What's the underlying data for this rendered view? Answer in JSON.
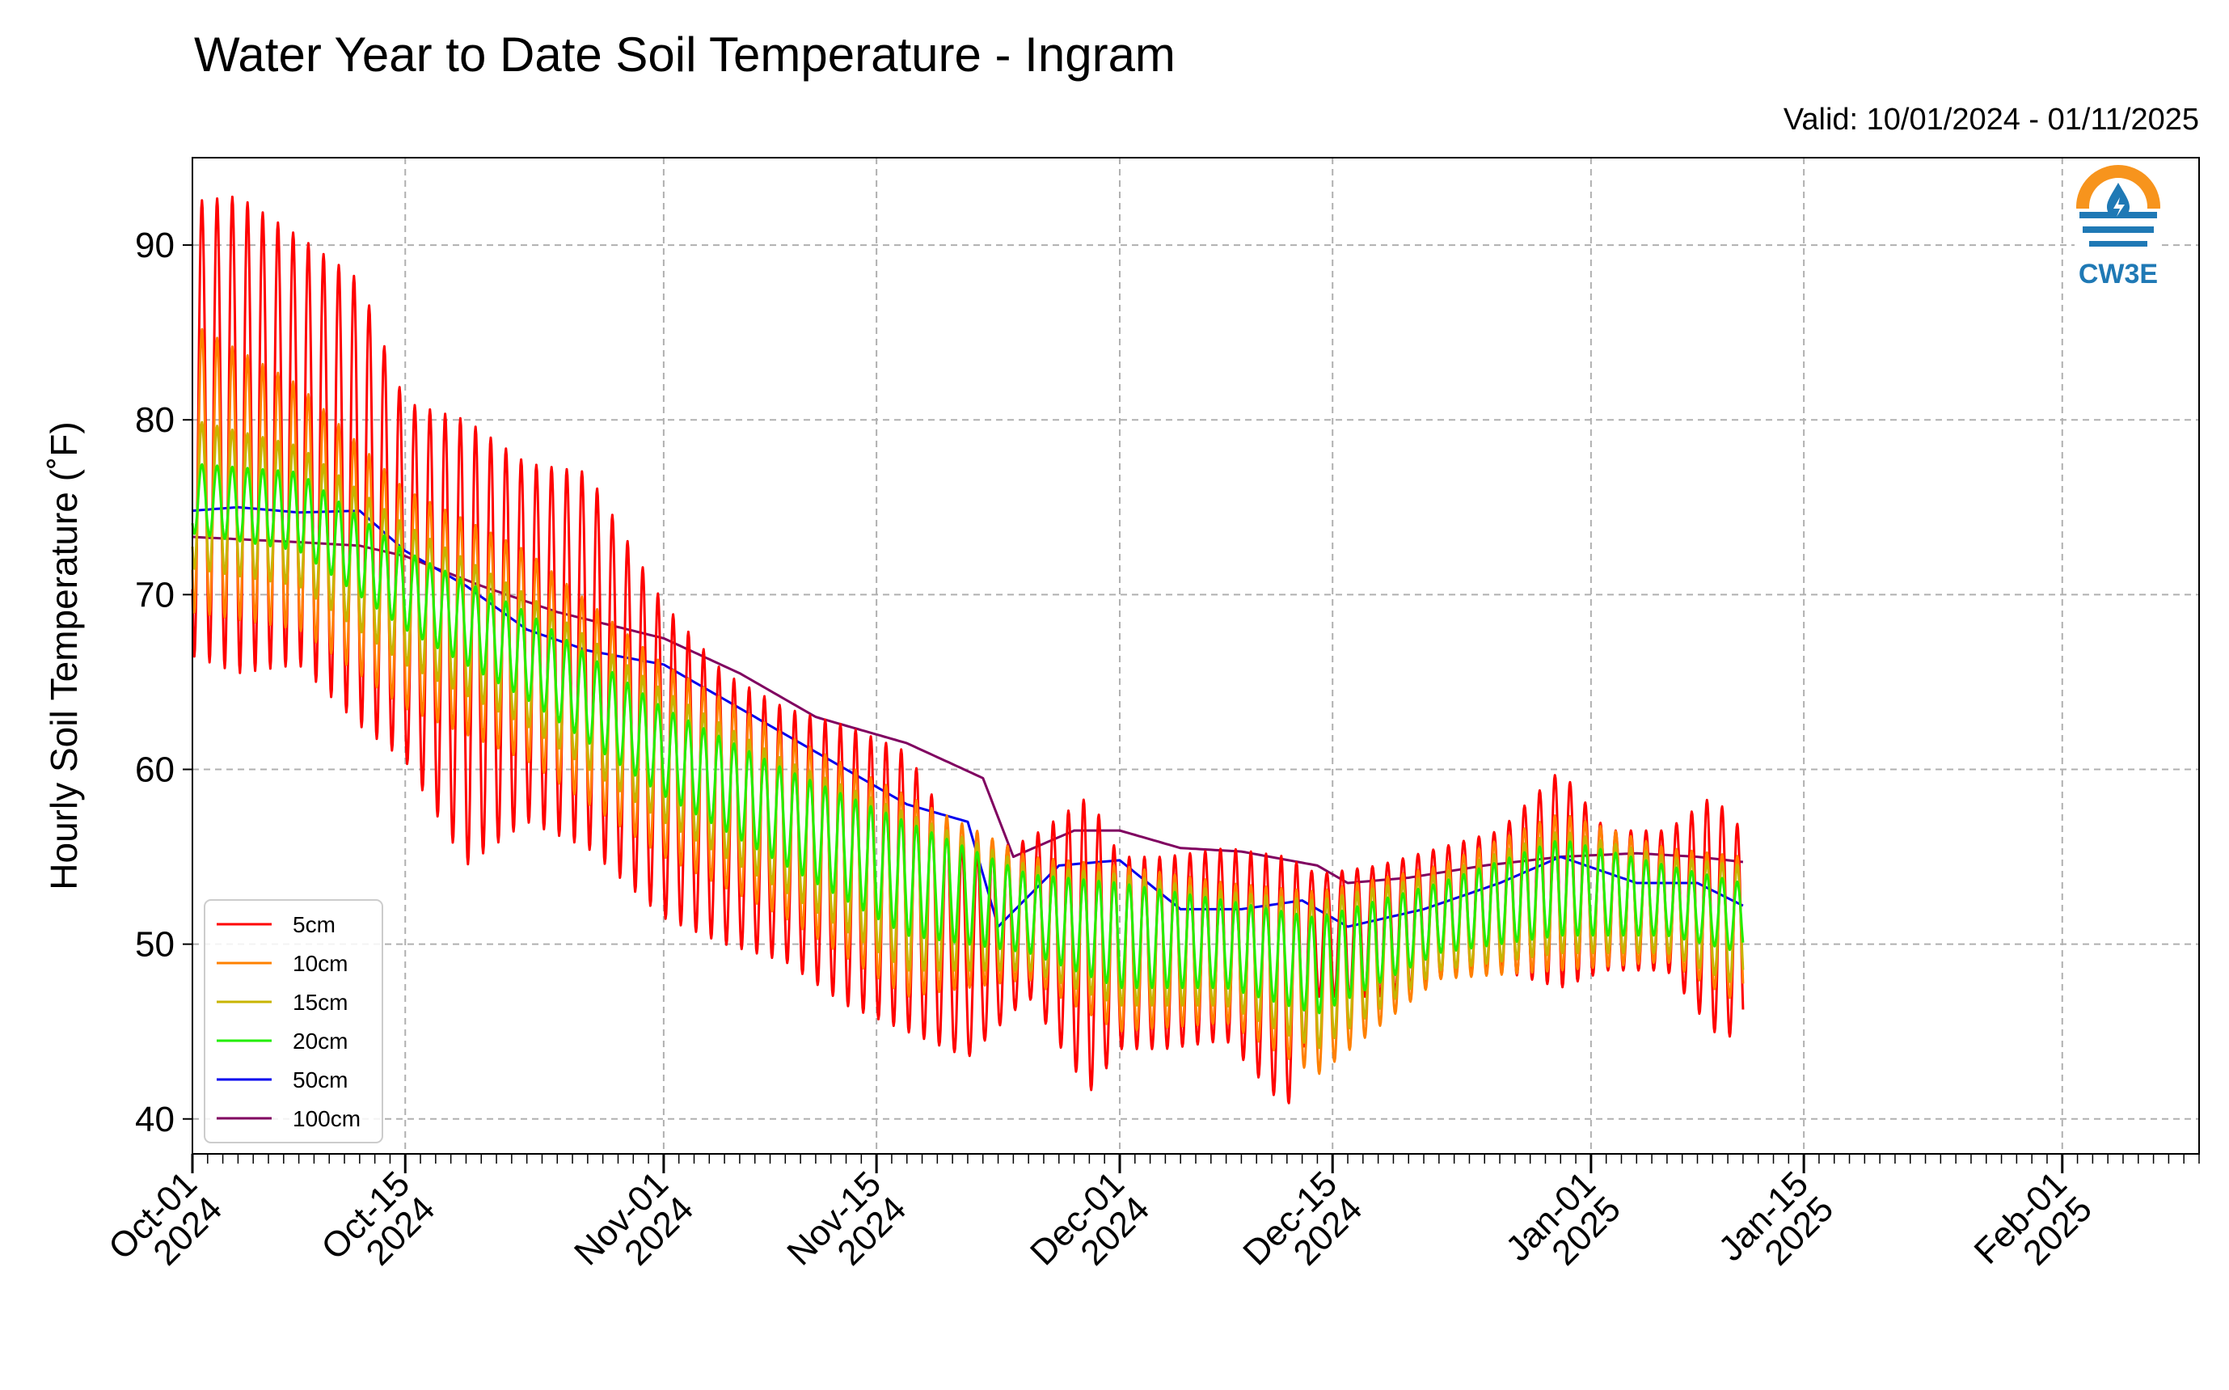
{
  "header": {
    "title": "Water Year to Date Soil Temperature - Ingram",
    "valid": "Valid: 10/01/2024 - 01/11/2025"
  },
  "logo": {
    "text": "CW3E",
    "icon": "cw3e-water-drop-icon",
    "colors": {
      "orange": "#f7941d",
      "blue": "#1f79b5"
    }
  },
  "chart_data": {
    "type": "line",
    "title": "Water Year to Date Soil Temperature - Ingram",
    "ylabel": "Hourly Soil Temperature ($^\\circ$F)",
    "ylabel_display": "Hourly Soil Temperature (˚F)",
    "xlabel": "",
    "xlim": [
      "2024-10-01",
      "2025-02-10"
    ],
    "ylim": [
      38,
      95
    ],
    "yticks": [
      40,
      50,
      60,
      70,
      80,
      90
    ],
    "xticks": [
      {
        "date": "2024-10-01",
        "line1": "Oct-01",
        "line2": "2024"
      },
      {
        "date": "2024-10-15",
        "line1": "Oct-15",
        "line2": "2024"
      },
      {
        "date": "2024-11-01",
        "line1": "Nov-01",
        "line2": "2024"
      },
      {
        "date": "2024-11-15",
        "line1": "Nov-15",
        "line2": "2024"
      },
      {
        "date": "2024-12-01",
        "line1": "Dec-01",
        "line2": "2024"
      },
      {
        "date": "2024-12-15",
        "line1": "Dec-15",
        "line2": "2024"
      },
      {
        "date": "2025-01-01",
        "line1": "Jan-01",
        "line2": "2025"
      },
      {
        "date": "2025-01-15",
        "line1": "Jan-15",
        "line2": "2025"
      },
      {
        "date": "2025-02-01",
        "line1": "Feb-01",
        "line2": "2025"
      }
    ],
    "grid": true,
    "legend_position": "lower-left",
    "series": [
      {
        "name": "5cm",
        "color": "#ff0000",
        "x": [
          "2024-10-01",
          "2024-10-04",
          "2024-10-08",
          "2024-10-12",
          "2024-10-15",
          "2024-10-19",
          "2024-10-23",
          "2024-10-27",
          "2024-11-01",
          "2024-11-05",
          "2024-11-09",
          "2024-11-13",
          "2024-11-17",
          "2024-11-21",
          "2024-11-25",
          "2024-11-29",
          "2024-12-01",
          "2024-12-04",
          "2024-12-08",
          "2024-12-12",
          "2024-12-14",
          "2024-12-18",
          "2024-12-22",
          "2024-12-26",
          "2024-12-30",
          "2025-01-02",
          "2025-01-06",
          "2025-01-09",
          "2025-01-11"
        ],
        "daily_max": [
          92.5,
          92.8,
          90.5,
          88.0,
          81.0,
          80.0,
          77.5,
          77.0,
          69.5,
          65.5,
          63.5,
          62.5,
          61.0,
          55.0,
          56.0,
          58.5,
          55.0,
          55.0,
          55.5,
          55.0,
          54.0,
          54.5,
          55.5,
          56.5,
          60.0,
          56.5,
          56.5,
          58.5,
          56.5
        ],
        "daily_min": [
          66.5,
          65.5,
          66.0,
          62.5,
          60.5,
          54.5,
          57.0,
          55.5,
          51.5,
          50.0,
          49.0,
          46.5,
          45.0,
          43.5,
          47.0,
          41.5,
          44.0,
          44.0,
          44.5,
          40.5,
          47.0,
          47.0,
          48.0,
          48.5,
          47.5,
          48.5,
          48.5,
          45.0,
          44.5
        ]
      },
      {
        "name": "10cm",
        "color": "#ff8000",
        "x": [
          "2024-10-01",
          "2024-10-08",
          "2024-10-15",
          "2024-10-23",
          "2024-11-01",
          "2024-11-09",
          "2024-11-17",
          "2024-11-25",
          "2024-12-01",
          "2024-12-08",
          "2024-12-14",
          "2024-12-22",
          "2024-12-30",
          "2025-01-06",
          "2025-01-11"
        ],
        "daily_max": [
          85.5,
          82.0,
          76.0,
          72.5,
          66.0,
          62.0,
          58.5,
          55.0,
          54.5,
          53.5,
          53.0,
          54.5,
          57.5,
          55.5,
          55.0
        ],
        "daily_min": [
          69.0,
          68.0,
          63.5,
          60.5,
          55.0,
          51.5,
          47.0,
          48.0,
          45.0,
          45.5,
          42.5,
          48.0,
          48.5,
          49.0,
          46.5
        ]
      },
      {
        "name": "15cm",
        "color": "#c8b400",
        "x": [
          "2024-10-01",
          "2024-10-08",
          "2024-10-15",
          "2024-10-23",
          "2024-11-01",
          "2024-11-09",
          "2024-11-17",
          "2024-11-25",
          "2024-12-01",
          "2024-12-08",
          "2024-12-14",
          "2024-12-22",
          "2024-12-30",
          "2025-01-06",
          "2025-01-11"
        ],
        "daily_max": [
          80.0,
          78.5,
          74.0,
          70.0,
          64.5,
          60.5,
          57.5,
          54.5,
          54.0,
          53.0,
          52.5,
          54.0,
          56.5,
          55.0,
          54.5
        ],
        "daily_min": [
          71.5,
          70.5,
          66.0,
          62.5,
          57.0,
          53.0,
          48.5,
          48.5,
          46.5,
          46.5,
          44.0,
          48.5,
          49.5,
          49.5,
          47.5
        ]
      },
      {
        "name": "20cm",
        "color": "#22ee00",
        "x": [
          "2024-10-01",
          "2024-10-08",
          "2024-10-15",
          "2024-10-23",
          "2024-11-01",
          "2024-11-09",
          "2024-11-17",
          "2024-11-25",
          "2024-12-01",
          "2024-12-08",
          "2024-12-14",
          "2024-12-22",
          "2024-12-30",
          "2025-01-06",
          "2025-01-11"
        ],
        "daily_max": [
          77.5,
          77.0,
          72.5,
          69.0,
          63.5,
          60.0,
          57.0,
          54.0,
          53.5,
          52.5,
          51.5,
          53.5,
          56.0,
          54.5,
          53.5
        ],
        "daily_min": [
          73.5,
          72.5,
          68.0,
          64.0,
          58.5,
          54.5,
          50.5,
          49.5,
          47.5,
          47.5,
          46.0,
          49.5,
          50.5,
          50.5,
          49.5
        ]
      },
      {
        "name": "50cm",
        "color": "#0000ee",
        "x": [
          "2024-10-01",
          "2024-10-04",
          "2024-10-08",
          "2024-10-12",
          "2024-10-15",
          "2024-10-19",
          "2024-10-23",
          "2024-10-27",
          "2024-11-01",
          "2024-11-05",
          "2024-11-09",
          "2024-11-13",
          "2024-11-17",
          "2024-11-21",
          "2024-11-23",
          "2024-11-27",
          "2024-12-01",
          "2024-12-05",
          "2024-12-09",
          "2024-12-13",
          "2024-12-16",
          "2024-12-21",
          "2024-12-26",
          "2024-12-30",
          "2025-01-04",
          "2025-01-08",
          "2025-01-11"
        ],
        "values": [
          74.8,
          75.0,
          74.7,
          74.8,
          72.5,
          70.5,
          68.0,
          66.8,
          66.0,
          64.0,
          62.0,
          60.0,
          58.0,
          57.0,
          51.0,
          54.5,
          54.8,
          52.0,
          52.0,
          52.5,
          51.0,
          52.0,
          53.5,
          55.0,
          53.5,
          53.5,
          52.2
        ]
      },
      {
        "name": "100cm",
        "color": "#800060",
        "x": [
          "2024-10-01",
          "2024-10-08",
          "2024-10-12",
          "2024-10-15",
          "2024-10-20",
          "2024-10-25",
          "2024-11-01",
          "2024-11-06",
          "2024-11-11",
          "2024-11-17",
          "2024-11-22",
          "2024-11-24",
          "2024-11-28",
          "2024-12-01",
          "2024-12-05",
          "2024-12-09",
          "2024-12-14",
          "2024-12-16",
          "2024-12-20",
          "2024-12-25",
          "2024-12-30",
          "2025-01-04",
          "2025-01-08",
          "2025-01-11"
        ],
        "values": [
          73.3,
          73.0,
          72.8,
          72.2,
          70.5,
          69.0,
          67.5,
          65.5,
          63.0,
          61.5,
          59.5,
          55.0,
          56.5,
          56.5,
          55.5,
          55.3,
          54.5,
          53.5,
          53.8,
          54.5,
          55.0,
          55.2,
          55.0,
          54.7
        ]
      }
    ]
  }
}
